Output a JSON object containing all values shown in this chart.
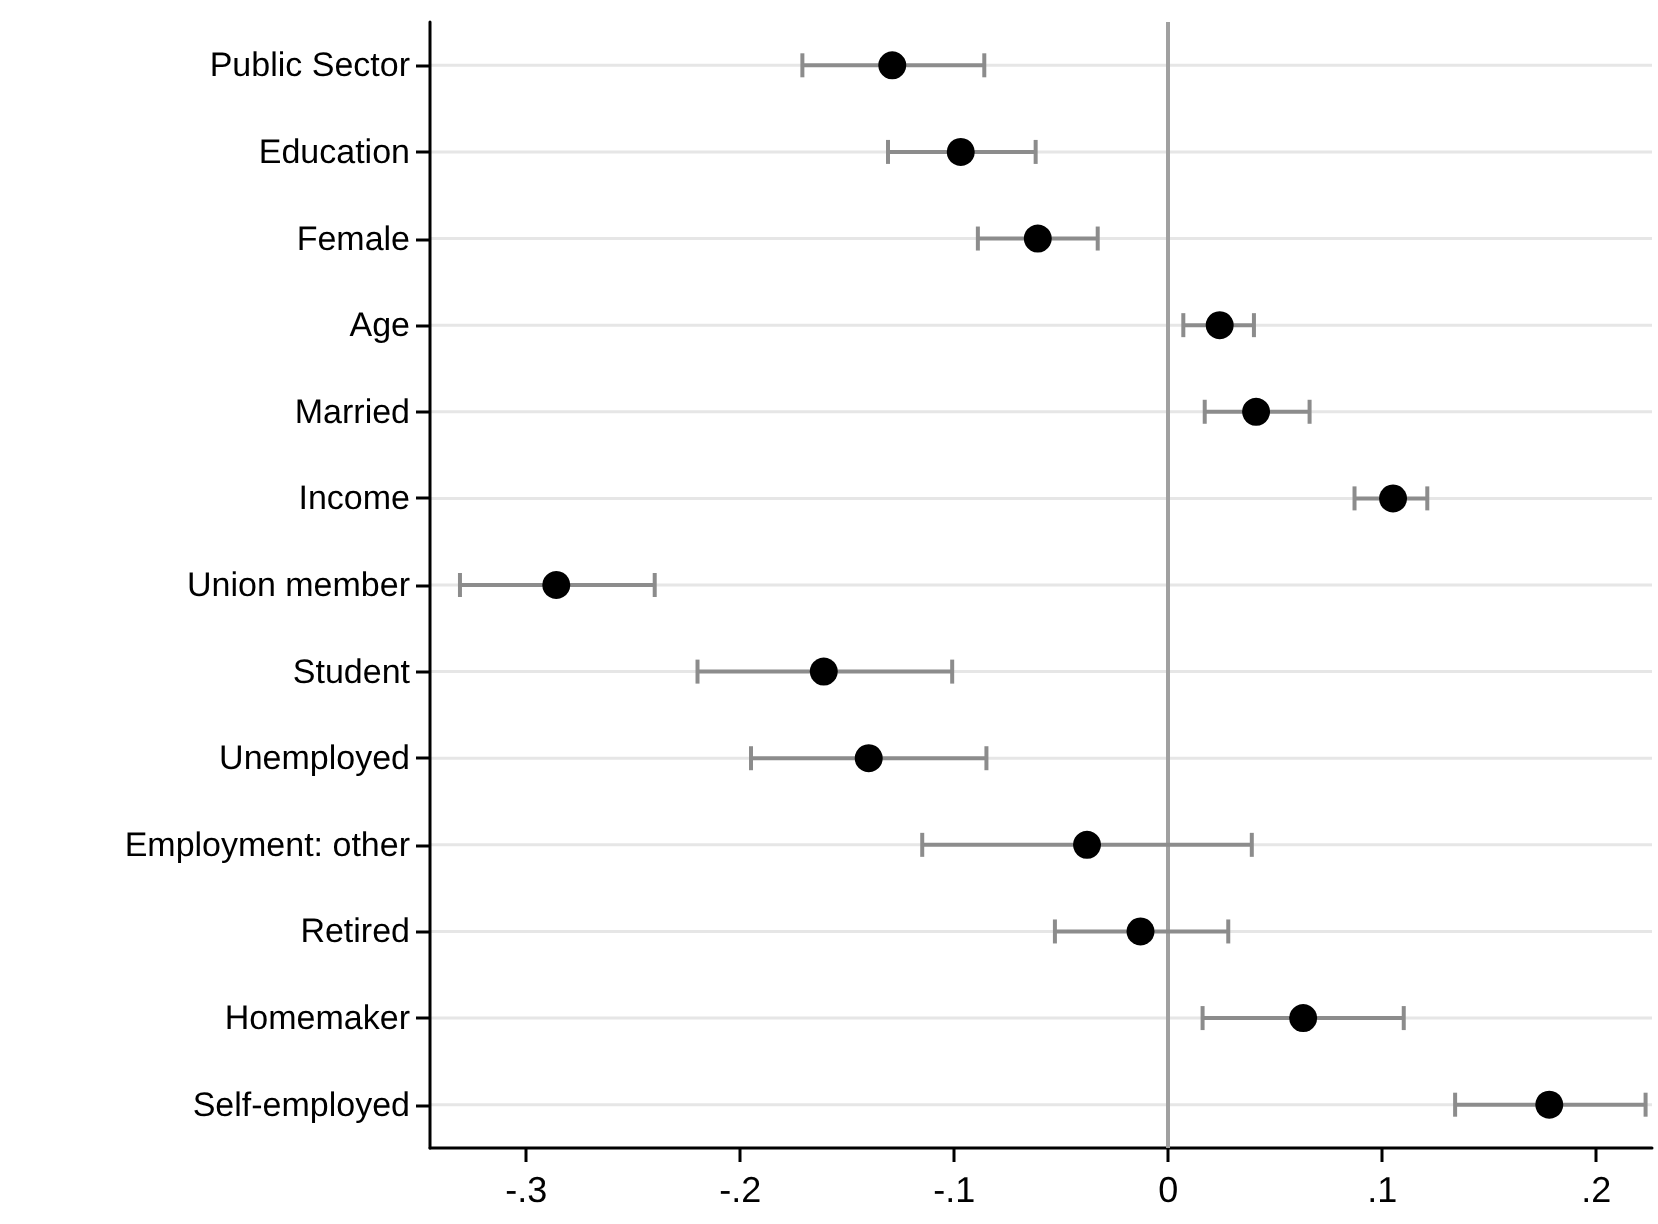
{
  "chart_data": {
    "type": "scatter",
    "orientation": "horizontal",
    "categories": [
      "Public Sector",
      "Education",
      "Female",
      "Age",
      "Married",
      "Income",
      "Union member",
      "Student",
      "Unemployed",
      "Employment: other",
      "Retired",
      "Homemaker",
      "Self-employed"
    ],
    "series": [
      {
        "color": "#000000",
        "values": [
          -0.129,
          -0.097,
          -0.061,
          0.024,
          0.041,
          0.105,
          -0.286,
          -0.161,
          -0.14,
          -0.038,
          -0.013,
          0.063,
          0.178
        ],
        "errors": [
          [
            -0.171,
            -0.086
          ],
          [
            -0.131,
            -0.062
          ],
          [
            -0.089,
            -0.033
          ],
          [
            0.007,
            0.04
          ],
          [
            0.017,
            0.066
          ],
          [
            0.087,
            0.121
          ],
          [
            -0.331,
            -0.24
          ],
          [
            -0.22,
            -0.101
          ],
          [
            -0.195,
            -0.085
          ],
          [
            -0.115,
            0.039
          ],
          [
            -0.053,
            0.028
          ],
          [
            0.016,
            0.11
          ],
          [
            0.134,
            0.223
          ]
        ]
      }
    ],
    "xlim": [
      -0.345,
      0.226
    ],
    "xticks": [
      {
        "value": -0.3,
        "label": "-.3"
      },
      {
        "value": -0.2,
        "label": "-.2"
      },
      {
        "value": -0.1,
        "label": "-.1"
      },
      0,
      {
        "value": 0.1,
        "label": ".1"
      },
      {
        "value": 0.2,
        "label": ".2"
      }
    ],
    "ref_lines": [
      {
        "axis": "x",
        "value": 0,
        "label": null,
        "color": "#a0a0a0"
      }
    ],
    "grid": "y",
    "marker": "circle"
  }
}
